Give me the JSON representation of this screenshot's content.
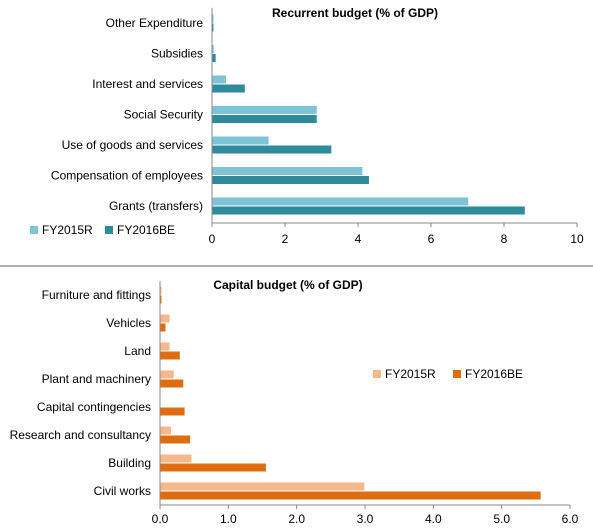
{
  "chart_data": [
    {
      "type": "bar",
      "orientation": "horizontal",
      "title": "Recurrent budget (% of GDP)",
      "categories": [
        "Other Expenditure",
        "Subsidies",
        "Interest and services",
        "Social Security",
        "Use of goods and services",
        "Compensation of employees",
        "Grants (transfers)"
      ],
      "series": [
        {
          "name": "FY2015R",
          "color": "#7dc4d6",
          "values": [
            0.02,
            0.05,
            0.38,
            2.87,
            1.55,
            4.12,
            7.02
          ]
        },
        {
          "name": "FY2016BE",
          "color": "#2f8a9c",
          "values": [
            0.02,
            0.1,
            0.9,
            2.87,
            3.27,
            4.3,
            8.57
          ]
        }
      ],
      "x_ticks": [
        "0",
        "2",
        "4",
        "6",
        "8",
        "10"
      ],
      "xlim": [
        0,
        10
      ],
      "legend_position": "bottom-left",
      "grid": false
    },
    {
      "type": "bar",
      "orientation": "horizontal",
      "title": "Capital budget (% of GDP)",
      "categories": [
        "Furniture and fittings",
        "Vehicles",
        "Land",
        "Plant and machinery",
        "Capital contingencies",
        "Research and consultancy",
        "Building",
        "Civil works"
      ],
      "series": [
        {
          "name": "FY2015R",
          "color": "#f5b88a",
          "values": [
            0.02,
            0.14,
            0.14,
            0.2,
            0.0,
            0.16,
            0.46,
            2.99
          ]
        },
        {
          "name": "FY2016BE",
          "color": "#e06c10",
          "values": [
            0.02,
            0.08,
            0.29,
            0.34,
            0.36,
            0.44,
            1.55,
            5.57
          ]
        }
      ],
      "x_ticks": [
        "0.0",
        "1.0",
        "2.0",
        "3.0",
        "4.0",
        "5.0",
        "6.0"
      ],
      "xlim": [
        0,
        6
      ],
      "legend_position": "right",
      "grid": false
    }
  ]
}
